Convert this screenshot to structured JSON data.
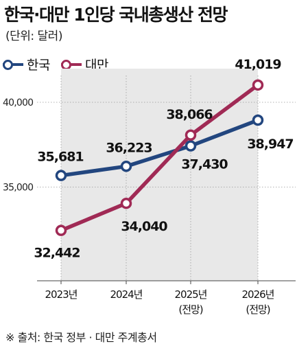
{
  "title": "한국·대만 1인당 국내총생산 전망",
  "unit_note": "(단위: 달러)",
  "source": "※ 출처: 한국 정부 · 대만 주계총서",
  "colors": {
    "korea": "#22467f",
    "taiwan": "#a02a55",
    "shade": "#e8e8e8",
    "grid": "#999999"
  },
  "chart_data": {
    "type": "line",
    "title": "한국·대만 1인당 국내총생산 전망",
    "ylabel": "",
    "xlabel": "",
    "categories": [
      "2023년",
      "2024년",
      "2025년\n(전망)",
      "2026년\n(전망)"
    ],
    "series": [
      {
        "name": "한국",
        "values": [
          35681,
          36223,
          37430,
          38947
        ],
        "labels": [
          "35,681",
          "36,223",
          "37,430",
          "38,947"
        ]
      },
      {
        "name": "대만",
        "values": [
          32442,
          34040,
          38066,
          41019
        ],
        "labels": [
          "32,442",
          "34,040",
          "38,066",
          "41,019"
        ]
      }
    ],
    "yticks": [
      35000,
      40000
    ],
    "ytick_labels": [
      "35,000",
      "40,000"
    ],
    "grid": true,
    "legend": "top-left"
  }
}
